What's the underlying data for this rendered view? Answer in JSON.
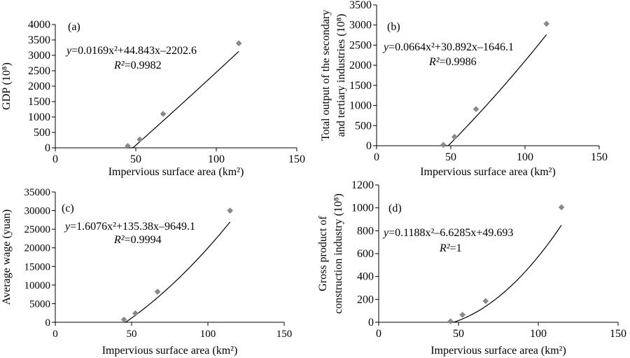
{
  "chart_data": [
    {
      "type": "scatter",
      "panel_label": "(a)",
      "xlabel": "Impervious surface area (km²)",
      "ylabel": "GDP (10⁸)",
      "xlim": [
        0,
        150
      ],
      "ylim": [
        0,
        4000
      ],
      "xticks": [
        0,
        50,
        100,
        150
      ],
      "yticks": [
        0,
        500,
        1000,
        1500,
        2000,
        2500,
        3000,
        3500,
        4000
      ],
      "points": {
        "x": [
          45,
          52.5,
          67,
          114
        ],
        "y": [
          60,
          270,
          1100,
          3390
        ]
      },
      "fit": {
        "a": 0.0169,
        "b": 44.843,
        "c": -2202.6
      },
      "equation": {
        "prefix": "y",
        "text": "=0.0169x²+44.843x–2202.6"
      },
      "r_squared": {
        "prefix": "R²",
        "text": "=0.9982"
      },
      "grid": false
    },
    {
      "type": "scatter",
      "panel_label": "(b)",
      "xlabel": "Impervious surface area  (km²)",
      "ylabel": [
        "Total output of the secondary",
        "and tertiary industries (10⁸)"
      ],
      "xlim": [
        0,
        150
      ],
      "ylim": [
        0,
        3500
      ],
      "xticks": [
        0,
        50,
        100,
        150
      ],
      "yticks": [
        0,
        500,
        1000,
        1500,
        2000,
        2500,
        3000,
        3500
      ],
      "points": {
        "x": [
          45,
          52.5,
          67,
          114.5
        ],
        "y": [
          20,
          220,
          910,
          3030
        ]
      },
      "fit": {
        "a": 0.0664,
        "b": 30.892,
        "c": -1646.1
      },
      "equation": {
        "prefix": "y",
        "text": "=0.0664x²+30.892x–1646.1"
      },
      "r_squared": {
        "prefix": "R²",
        "text": "=0.9986"
      },
      "grid": false
    },
    {
      "type": "scatter",
      "panel_label": "(c)",
      "xlabel": "Impervious surface area (km²)",
      "ylabel": "Average wage (yuan)",
      "xlim": [
        0,
        150
      ],
      "ylim": [
        0,
        35000
      ],
      "xticks": [
        0,
        50,
        100,
        150
      ],
      "yticks": [
        0,
        5000,
        10000,
        15000,
        20000,
        25000,
        30000,
        35000
      ],
      "points": {
        "x": [
          45,
          52.5,
          67,
          114.5
        ],
        "y": [
          700,
          2400,
          8200,
          30000
        ]
      },
      "fit": {
        "a": 1.6076,
        "b": 135.38,
        "c": -9649.1
      },
      "equation": {
        "prefix": "y",
        "text": "=1.6076x²+135.38x–9649.1"
      },
      "r_squared": {
        "prefix": "R²",
        "text": "=0.9994"
      },
      "grid": false
    },
    {
      "type": "scatter",
      "panel_label": "(d)",
      "xlabel": "Impervious surface area (km²)",
      "ylabel": [
        "Gross product of",
        "construction industry (10⁸)"
      ],
      "xlim": [
        0,
        150
      ],
      "ylim": [
        0,
        1200
      ],
      "xticks": [
        0,
        50,
        100,
        150
      ],
      "yticks": [
        0,
        200,
        400,
        600,
        800,
        1000,
        1200
      ],
      "points": {
        "x": [
          45,
          52.5,
          67,
          114.5
        ],
        "y": [
          8,
          65,
          185,
          1005
        ]
      },
      "fit": {
        "a": 0.1188,
        "b": -6.6285,
        "c": 49.693
      },
      "equation": {
        "prefix": "y",
        "text": "=0.1188x²–6.6285x+49.693"
      },
      "r_squared": {
        "prefix": "R²",
        "text": "=1"
      },
      "grid": false
    }
  ]
}
